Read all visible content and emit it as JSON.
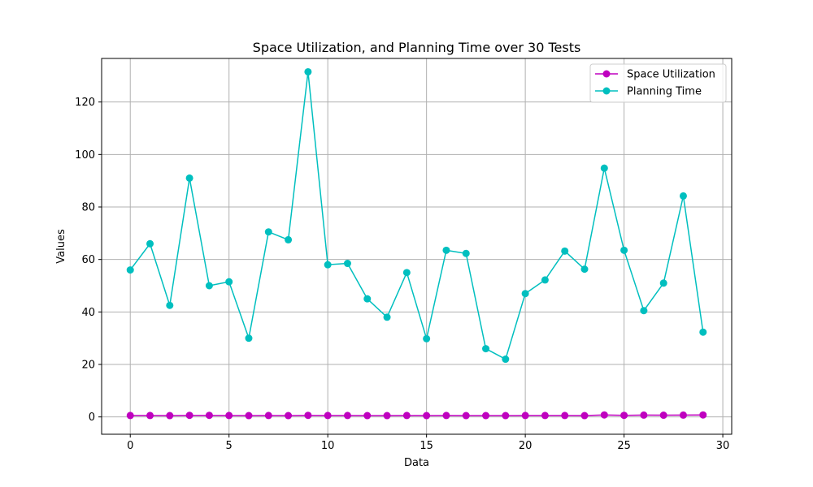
{
  "chart_data": {
    "type": "line",
    "title": "Space Utilization, and Planning Time over 30 Tests",
    "xlabel": "Data",
    "ylabel": "Values",
    "xlim": [
      -1.45,
      30.45
    ],
    "ylim": [
      -6.6,
      136.6
    ],
    "xticks": [
      0,
      5,
      10,
      15,
      20,
      25,
      30
    ],
    "yticks": [
      0,
      20,
      40,
      60,
      80,
      100,
      120
    ],
    "grid": true,
    "legend_position": "top-right",
    "x": [
      0,
      1,
      2,
      3,
      4,
      5,
      6,
      7,
      8,
      9,
      10,
      11,
      12,
      13,
      14,
      15,
      16,
      17,
      18,
      19,
      20,
      21,
      22,
      23,
      24,
      25,
      26,
      27,
      28,
      29
    ],
    "series": [
      {
        "name": "Space Utilization",
        "color": "#bf00bf",
        "values": [
          0.55,
          0.55,
          0.5,
          0.6,
          0.6,
          0.55,
          0.5,
          0.55,
          0.5,
          0.6,
          0.55,
          0.55,
          0.5,
          0.5,
          0.55,
          0.5,
          0.55,
          0.5,
          0.5,
          0.5,
          0.55,
          0.55,
          0.55,
          0.5,
          0.75,
          0.6,
          0.7,
          0.65,
          0.7,
          0.75
        ]
      },
      {
        "name": "Planning Time",
        "color": "#00bfbf",
        "values": [
          56,
          66,
          42.5,
          91,
          50,
          51.5,
          30,
          70.5,
          67.5,
          131.5,
          58,
          58.5,
          45,
          38,
          55,
          29.8,
          63.5,
          62.3,
          26,
          22,
          47,
          52.2,
          63.2,
          56.3,
          94.8,
          63.5,
          40.5,
          51,
          84.2,
          32.3
        ]
      }
    ]
  }
}
